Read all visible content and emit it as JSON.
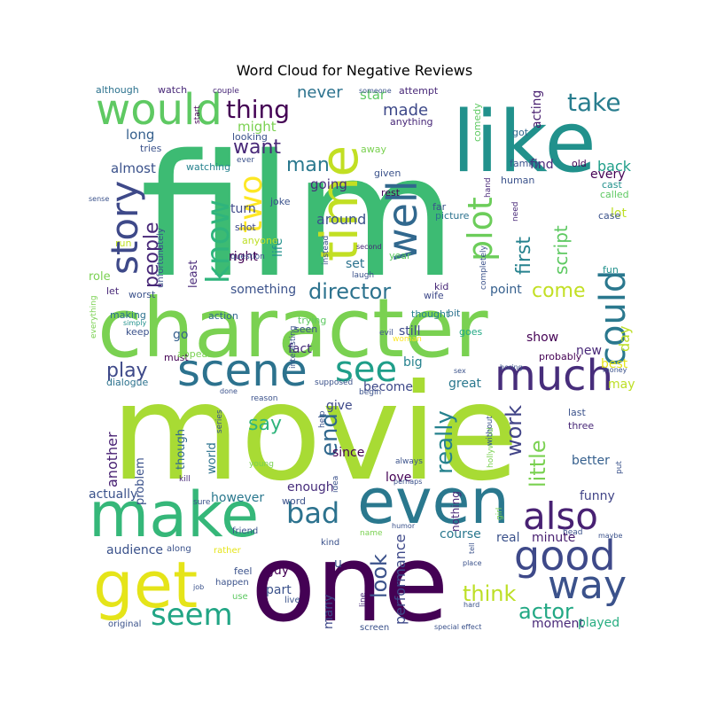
{
  "title": "Word Cloud for Negative Reviews",
  "palette": [
    "#440154",
    "#472c7a",
    "#3b518b",
    "#2c718e",
    "#21908d",
    "#27ad81",
    "#5cc863",
    "#aadc32",
    "#e3e418"
  ],
  "words": [
    {
      "text": "film",
      "size": 1.0,
      "color": "#3dbb73",
      "rot": 0
    },
    {
      "text": "movie",
      "size": 0.98,
      "color": "#a8db34",
      "rot": 0
    },
    {
      "text": "one",
      "size": 0.72,
      "color": "#440154",
      "rot": 0
    },
    {
      "text": "character",
      "size": 0.62,
      "color": "#7ad151",
      "rot": 0
    },
    {
      "text": "like",
      "size": 0.55,
      "color": "#21918c",
      "rot": 0
    },
    {
      "text": "even",
      "size": 0.42,
      "color": "#2a788e",
      "rot": 0
    },
    {
      "text": "make",
      "size": 0.4,
      "color": "#35b779",
      "rot": 0
    },
    {
      "text": "get",
      "size": 0.4,
      "color": "#e5e419",
      "rot": 0
    },
    {
      "text": "time",
      "size": 0.38,
      "color": "#c2df23",
      "rot": 90
    },
    {
      "text": "would",
      "size": 0.3,
      "color": "#5ec962",
      "rot": 0
    },
    {
      "text": "scene",
      "size": 0.3,
      "color": "#2c728e",
      "rot": 0
    },
    {
      "text": "much",
      "size": 0.28,
      "color": "#472d7b",
      "rot": 0
    },
    {
      "text": "well",
      "size": 0.3,
      "color": "#31688e",
      "rot": 90
    },
    {
      "text": "story",
      "size": 0.28,
      "color": "#3e4989",
      "rot": 90
    },
    {
      "text": "could",
      "size": 0.26,
      "color": "#2a788e",
      "rot": 90
    },
    {
      "text": "good",
      "size": 0.26,
      "color": "#3e4989",
      "rot": 0
    },
    {
      "text": "also",
      "size": 0.24,
      "color": "#482173",
      "rot": 0
    },
    {
      "text": "way",
      "size": 0.24,
      "color": "#3b528b",
      "rot": 0
    },
    {
      "text": "see",
      "size": 0.22,
      "color": "#1f9e89",
      "rot": 0
    },
    {
      "text": "plot",
      "size": 0.22,
      "color": "#6ccd5a",
      "rot": 90
    },
    {
      "text": "two",
      "size": 0.2,
      "color": "#fde725",
      "rot": 90
    },
    {
      "text": "know",
      "size": 0.2,
      "color": "#2fb47c",
      "rot": 90
    },
    {
      "text": "seem",
      "size": 0.2,
      "color": "#21a585",
      "rot": 0
    },
    {
      "text": "bad",
      "size": 0.18,
      "color": "#2c728e",
      "rot": 0
    },
    {
      "text": "take",
      "size": 0.16,
      "color": "#287d8e",
      "rot": 0
    },
    {
      "text": "thing",
      "size": 0.16,
      "color": "#440154",
      "rot": 0
    },
    {
      "text": "end",
      "size": 0.16,
      "color": "#31688e",
      "rot": 90
    },
    {
      "text": "really",
      "size": 0.15,
      "color": "#26828e",
      "rot": 90
    },
    {
      "text": "work",
      "size": 0.15,
      "color": "#414487",
      "rot": 90
    },
    {
      "text": "little",
      "size": 0.14,
      "color": "#7ad151",
      "rot": 90
    },
    {
      "text": "people",
      "size": 0.14,
      "color": "#482878",
      "rot": 90
    },
    {
      "text": "look",
      "size": 0.14,
      "color": "#3b528b",
      "rot": 90
    },
    {
      "text": "director",
      "size": 0.14,
      "color": "#2c728e",
      "rot": 0
    },
    {
      "text": "actor",
      "size": 0.14,
      "color": "#22a884",
      "rot": 0
    },
    {
      "text": "think",
      "size": 0.14,
      "color": "#bddf26",
      "rot": 0
    },
    {
      "text": "first",
      "size": 0.13,
      "color": "#26828e",
      "rot": 90
    },
    {
      "text": "script",
      "size": 0.13,
      "color": "#5ec962",
      "rot": 90
    },
    {
      "text": "come",
      "size": 0.13,
      "color": "#c2df23",
      "rot": 0
    },
    {
      "text": "play",
      "size": 0.12,
      "color": "#3e4989",
      "rot": 0
    },
    {
      "text": "say",
      "size": 0.12,
      "color": "#2fb47c",
      "rot": 0
    },
    {
      "text": "want",
      "size": 0.12,
      "color": "#482878",
      "rot": 0
    },
    {
      "text": "man",
      "size": 0.12,
      "color": "#2a788e",
      "rot": 0
    },
    {
      "text": "made",
      "size": 0.11,
      "color": "#3e4989",
      "rot": 0
    },
    {
      "text": "never",
      "size": 0.11,
      "color": "#2c728e",
      "rot": 0
    },
    {
      "text": "another",
      "size": 0.1,
      "color": "#482173",
      "rot": 90
    },
    {
      "text": "performance",
      "size": 0.1,
      "color": "#3e4989",
      "rot": 90
    },
    {
      "text": "day",
      "size": 0.09,
      "color": "#bddf26",
      "rot": 90
    },
    {
      "text": "back",
      "size": 0.09,
      "color": "#1f9e89",
      "rot": 0
    },
    {
      "text": "might",
      "size": 0.08,
      "color": "#7ad151",
      "rot": 0
    },
    {
      "text": "long",
      "size": 0.08,
      "color": "#355f8d",
      "rot": 0
    },
    {
      "text": "almost",
      "size": 0.08,
      "color": "#3b528b",
      "rot": 0
    },
    {
      "text": "going",
      "size": 0.08,
      "color": "#472d7b",
      "rot": 0
    },
    {
      "text": "around",
      "size": 0.08,
      "color": "#3b528b",
      "rot": 0
    },
    {
      "text": "lot",
      "size": 0.08,
      "color": "#bddf26",
      "rot": 0
    },
    {
      "text": "every",
      "size": 0.08,
      "color": "#440154",
      "rot": 0
    },
    {
      "text": "find",
      "size": 0.08,
      "color": "#482878",
      "rot": 0
    },
    {
      "text": "acting",
      "size": 0.08,
      "color": "#481f70",
      "rot": 90
    },
    {
      "text": "comedy",
      "size": 0.07,
      "color": "#5ec962",
      "rot": 90
    },
    {
      "text": "something",
      "size": 0.08,
      "color": "#3b528b",
      "rot": 0
    },
    {
      "text": "right",
      "size": 0.08,
      "color": "#440154",
      "rot": 0
    },
    {
      "text": "set",
      "size": 0.08,
      "color": "#2c728e",
      "rot": 0
    },
    {
      "text": "point",
      "size": 0.08,
      "color": "#355f8d",
      "rot": 0
    },
    {
      "text": "still",
      "size": 0.08,
      "color": "#3e4989",
      "rot": 0
    },
    {
      "text": "show",
      "size": 0.08,
      "color": "#440154",
      "rot": 0
    },
    {
      "text": "go",
      "size": 0.08,
      "color": "#355f8d",
      "rot": 0
    },
    {
      "text": "fact",
      "size": 0.08,
      "color": "#472d7b",
      "rot": 0
    },
    {
      "text": "big",
      "size": 0.08,
      "color": "#26828e",
      "rot": 0
    },
    {
      "text": "become",
      "size": 0.07,
      "color": "#3e4989",
      "rot": 0
    },
    {
      "text": "great",
      "size": 0.07,
      "color": "#2a788e",
      "rot": 0
    },
    {
      "text": "give",
      "size": 0.07,
      "color": "#3e4989",
      "rot": 0
    },
    {
      "text": "since",
      "size": 0.07,
      "color": "#440154",
      "rot": 0
    },
    {
      "text": "love",
      "size": 0.07,
      "color": "#440154",
      "rot": 0
    },
    {
      "text": "enough",
      "size": 0.07,
      "color": "#472d7b",
      "rot": 0
    },
    {
      "text": "however",
      "size": 0.07,
      "color": "#2a788e",
      "rot": 0
    },
    {
      "text": "actually",
      "size": 0.07,
      "color": "#3b528b",
      "rot": 0
    },
    {
      "text": "funny",
      "size": 0.07,
      "color": "#414487",
      "rot": 0
    },
    {
      "text": "better",
      "size": 0.07,
      "color": "#355f8d",
      "rot": 0
    },
    {
      "text": "best",
      "size": 0.07,
      "color": "#e5e419",
      "rot": 0
    },
    {
      "text": "may",
      "size": 0.07,
      "color": "#bddf26",
      "rot": 0
    },
    {
      "text": "new",
      "size": 0.07,
      "color": "#482878",
      "rot": 0
    },
    {
      "text": "course",
      "size": 0.07,
      "color": "#2a788e",
      "rot": 0
    },
    {
      "text": "real",
      "size": 0.07,
      "color": "#3b528b",
      "rot": 0
    },
    {
      "text": "minute",
      "size": 0.07,
      "color": "#481f70",
      "rot": 0
    },
    {
      "text": "guy",
      "size": 0.07,
      "color": "#440154",
      "rot": 0
    },
    {
      "text": "part",
      "size": 0.07,
      "color": "#3b528b",
      "rot": 0
    },
    {
      "text": "audience",
      "size": 0.07,
      "color": "#3b528b",
      "rot": 0
    },
    {
      "text": "moment",
      "size": 0.07,
      "color": "#482878",
      "rot": 0
    },
    {
      "text": "played",
      "size": 0.07,
      "color": "#27ad81",
      "rot": 0
    },
    {
      "text": "many",
      "size": 0.07,
      "color": "#3e4989",
      "rot": 90
    },
    {
      "text": "nothing",
      "size": 0.06,
      "color": "#482878",
      "rot": 90
    },
    {
      "text": "problem",
      "size": 0.06,
      "color": "#3b528b",
      "rot": 90
    },
    {
      "text": "though",
      "size": 0.07,
      "color": "#31688e",
      "rot": 90
    },
    {
      "text": "world",
      "size": 0.06,
      "color": "#2c728e",
      "rot": 90
    },
    {
      "text": "role",
      "size": 0.06,
      "color": "#7ad151",
      "rot": 0
    },
    {
      "text": "turn",
      "size": 0.06,
      "color": "#3e4989",
      "rot": 0
    },
    {
      "text": "life",
      "size": 0.06,
      "color": "#21918c",
      "rot": 90
    },
    {
      "text": "least",
      "size": 0.06,
      "color": "#482878",
      "rot": 90
    },
    {
      "text": "watching",
      "size": 0.05,
      "color": "#26828e",
      "rot": 0
    },
    {
      "text": "making",
      "size": 0.05,
      "color": "#2c728e",
      "rot": 0
    },
    {
      "text": "keep",
      "size": 0.05,
      "color": "#3b528b",
      "rot": 0
    },
    {
      "text": "action",
      "size": 0.05,
      "color": "#31688e",
      "rot": 0
    },
    {
      "text": "seen",
      "size": 0.05,
      "color": "#3b528b",
      "rot": 0
    },
    {
      "text": "trying",
      "size": 0.05,
      "color": "#5ec962",
      "rot": 0
    },
    {
      "text": "thought",
      "size": 0.05,
      "color": "#26828e",
      "rot": 0
    },
    {
      "text": "bit",
      "size": 0.05,
      "color": "#2c728e",
      "rot": 0
    },
    {
      "text": "goes",
      "size": 0.05,
      "color": "#22a884",
      "rot": 0
    },
    {
      "text": "kid",
      "size": 0.05,
      "color": "#482878",
      "rot": 0
    },
    {
      "text": "wife",
      "size": 0.05,
      "color": "#3e4989",
      "rot": 0
    },
    {
      "text": "worst",
      "size": 0.05,
      "color": "#3b528b",
      "rot": 0
    },
    {
      "text": "let",
      "size": 0.05,
      "color": "#482878",
      "rot": 0
    },
    {
      "text": "must",
      "size": 0.05,
      "color": "#440154",
      "rot": 0
    },
    {
      "text": "dialogue",
      "size": 0.05,
      "color": "#2c728e",
      "rot": 0
    },
    {
      "text": "appear",
      "size": 0.05,
      "color": "#7ad151",
      "rot": 0
    },
    {
      "text": "tries",
      "size": 0.05,
      "color": "#3b528b",
      "rot": 0
    },
    {
      "text": "looking",
      "size": 0.05,
      "color": "#3b528b",
      "rot": 0
    },
    {
      "text": "shot",
      "size": 0.05,
      "color": "#3e4989",
      "rot": 0
    },
    {
      "text": "joke",
      "size": 0.05,
      "color": "#3b528b",
      "rot": 0
    },
    {
      "text": "anyone",
      "size": 0.05,
      "color": "#bddf26",
      "rot": 0
    },
    {
      "text": "run",
      "size": 0.05,
      "color": "#bddf26",
      "rot": 0
    },
    {
      "text": "rest",
      "size": 0.05,
      "color": "#440154",
      "rot": 0
    },
    {
      "text": "given",
      "size": 0.05,
      "color": "#3b528b",
      "rot": 0
    },
    {
      "text": "away",
      "size": 0.05,
      "color": "#7ad151",
      "rot": 0
    },
    {
      "text": "far",
      "size": 0.05,
      "color": "#3b528b",
      "rot": 0
    },
    {
      "text": "picture",
      "size": 0.05,
      "color": "#2c728e",
      "rot": 0
    },
    {
      "text": "year",
      "size": 0.05,
      "color": "#5ec962",
      "rot": 0
    },
    {
      "text": "human",
      "size": 0.05,
      "color": "#3b528b",
      "rot": 0
    },
    {
      "text": "got",
      "size": 0.05,
      "color": "#31688e",
      "rot": 0
    },
    {
      "text": "family",
      "size": 0.05,
      "color": "#3b528b",
      "rot": 0
    },
    {
      "text": "old",
      "size": 0.05,
      "color": "#440154",
      "rot": 0
    },
    {
      "text": "cast",
      "size": 0.05,
      "color": "#21918c",
      "rot": 0
    },
    {
      "text": "called",
      "size": 0.05,
      "color": "#5ec962",
      "rot": 0
    },
    {
      "text": "case",
      "size": 0.05,
      "color": "#3b528b",
      "rot": 0
    },
    {
      "text": "fun",
      "size": 0.05,
      "color": "#21918c",
      "rot": 0
    },
    {
      "text": "last",
      "size": 0.05,
      "color": "#3b528b",
      "rot": 0
    },
    {
      "text": "three",
      "size": 0.05,
      "color": "#482878",
      "rot": 0
    },
    {
      "text": "probably",
      "size": 0.05,
      "color": "#440154",
      "rot": 0
    },
    {
      "text": "star",
      "size": 0.06,
      "color": "#5ec962",
      "rot": 0
    },
    {
      "text": "attempt",
      "size": 0.05,
      "color": "#482878",
      "rot": 0
    },
    {
      "text": "anything",
      "size": 0.05,
      "color": "#482878",
      "rot": 0
    },
    {
      "text": "although",
      "size": 0.05,
      "color": "#2c728e",
      "rot": 0
    },
    {
      "text": "watch",
      "size": 0.05,
      "color": "#482878",
      "rot": 0
    },
    {
      "text": "couple",
      "size": 0.04,
      "color": "#482878",
      "rot": 0
    },
    {
      "text": "start",
      "size": 0.04,
      "color": "#440154",
      "rot": 90
    },
    {
      "text": "ever",
      "size": 0.04,
      "color": "#3b528b",
      "rot": 0
    },
    {
      "text": "unfortunately",
      "size": 0.04,
      "color": "#3b528b",
      "rot": 90
    },
    {
      "text": "instead",
      "size": 0.04,
      "color": "#3b528b",
      "rot": 90
    },
    {
      "text": "completely",
      "size": 0.04,
      "color": "#3b528b",
      "rot": 90
    },
    {
      "text": "need",
      "size": 0.04,
      "color": "#482878",
      "rot": 90
    },
    {
      "text": "hand",
      "size": 0.04,
      "color": "#482878",
      "rot": 90
    },
    {
      "text": "laugh",
      "size": 0.04,
      "color": "#3b528b",
      "rot": 0
    },
    {
      "text": "question",
      "size": 0.04,
      "color": "#3b528b",
      "rot": 0
    },
    {
      "text": "second",
      "size": 0.04,
      "color": "#482878",
      "rot": 0
    },
    {
      "text": "sense",
      "size": 0.04,
      "color": "#3b528b",
      "rot": 0
    },
    {
      "text": "everything",
      "size": 0.04,
      "color": "#7ad151",
      "rot": 90
    },
    {
      "text": "simply",
      "size": 0.04,
      "color": "#21918c",
      "rot": 0
    },
    {
      "text": "interesting",
      "size": 0.04,
      "color": "#3b528b",
      "rot": 90
    },
    {
      "text": "evil",
      "size": 0.04,
      "color": "#3b528b",
      "rot": 0
    },
    {
      "text": "woman",
      "size": 0.04,
      "color": "#fde725",
      "rot": 0
    },
    {
      "text": "sex",
      "size": 0.04,
      "color": "#3b528b",
      "rot": 0
    },
    {
      "text": "boring",
      "size": 0.04,
      "color": "#3b528b",
      "rot": 0
    },
    {
      "text": "money",
      "size": 0.04,
      "color": "#3b528b",
      "rot": 0
    },
    {
      "text": "supposed",
      "size": 0.04,
      "color": "#3b528b",
      "rot": 0
    },
    {
      "text": "done",
      "size": 0.04,
      "color": "#3b528b",
      "rot": 0
    },
    {
      "text": "series",
      "size": 0.04,
      "color": "#3b528b",
      "rot": 90
    },
    {
      "text": "reason",
      "size": 0.04,
      "color": "#3b528b",
      "rot": 0
    },
    {
      "text": "young",
      "size": 0.04,
      "color": "#7ad151",
      "rot": 0
    },
    {
      "text": "help",
      "size": 0.04,
      "color": "#3b528b",
      "rot": 90
    },
    {
      "text": "begin",
      "size": 0.04,
      "color": "#3b528b",
      "rot": 0
    },
    {
      "text": "always",
      "size": 0.04,
      "color": "#3b528b",
      "rot": 0
    },
    {
      "text": "hollywood",
      "size": 0.04,
      "color": "#7ad151",
      "rot": 90
    },
    {
      "text": "without",
      "size": 0.04,
      "color": "#3b528b",
      "rot": 90
    },
    {
      "text": "kill",
      "size": 0.04,
      "color": "#482878",
      "rot": 0
    },
    {
      "text": "idea",
      "size": 0.04,
      "color": "#3b528b",
      "rot": 90
    },
    {
      "text": "perhaps",
      "size": 0.04,
      "color": "#3b528b",
      "rot": 0
    },
    {
      "text": "put",
      "size": 0.04,
      "color": "#3b528b",
      "rot": 90
    },
    {
      "text": "sure",
      "size": 0.04,
      "color": "#3b528b",
      "rot": 0
    },
    {
      "text": "word",
      "size": 0.05,
      "color": "#3b528b",
      "rot": 0
    },
    {
      "text": "girl",
      "size": 0.04,
      "color": "#7ad151",
      "rot": 90
    },
    {
      "text": "head",
      "size": 0.04,
      "color": "#3b528b",
      "rot": 0
    },
    {
      "text": "friend",
      "size": 0.04,
      "color": "#3b528b",
      "rot": 0
    },
    {
      "text": "kind",
      "size": 0.04,
      "color": "#3b528b",
      "rot": 0
    },
    {
      "text": "name",
      "size": 0.04,
      "color": "#7ad151",
      "rot": 0
    },
    {
      "text": "humor",
      "size": 0.04,
      "color": "#3b528b",
      "rot": 0
    },
    {
      "text": "maybe",
      "size": 0.04,
      "color": "#3b528b",
      "rot": 0
    },
    {
      "text": "along",
      "size": 0.04,
      "color": "#3b528b",
      "rot": 0
    },
    {
      "text": "rather",
      "size": 0.04,
      "color": "#e5e419",
      "rot": 0
    },
    {
      "text": "u",
      "size": 0.05,
      "color": "#3b528b",
      "rot": 0
    },
    {
      "text": "place",
      "size": 0.04,
      "color": "#3b528b",
      "rot": 0
    },
    {
      "text": "feel",
      "size": 0.04,
      "color": "#3b528b",
      "rot": 0
    },
    {
      "text": "happen",
      "size": 0.04,
      "color": "#3b528b",
      "rot": 0
    },
    {
      "text": "job",
      "size": 0.04,
      "color": "#3b528b",
      "rot": 0
    },
    {
      "text": "use",
      "size": 0.04,
      "color": "#5ec962",
      "rot": 0
    },
    {
      "text": "live",
      "size": 0.04,
      "color": "#3b528b",
      "rot": 0
    },
    {
      "text": "line",
      "size": 0.04,
      "color": "#482878",
      "rot": 90
    },
    {
      "text": "tell",
      "size": 0.04,
      "color": "#3b528b",
      "rot": 90
    },
    {
      "text": "hard",
      "size": 0.04,
      "color": "#3b528b",
      "rot": 0
    },
    {
      "text": "original",
      "size": 0.04,
      "color": "#3b528b",
      "rot": 0
    },
    {
      "text": "screen",
      "size": 0.04,
      "color": "#3b528b",
      "rot": 0
    },
    {
      "text": "special effect",
      "size": 0.04,
      "color": "#3b528b",
      "rot": 0
    },
    {
      "text": "someone",
      "size": 0.03,
      "color": "#3b528b",
      "rot": 0
    }
  ]
}
